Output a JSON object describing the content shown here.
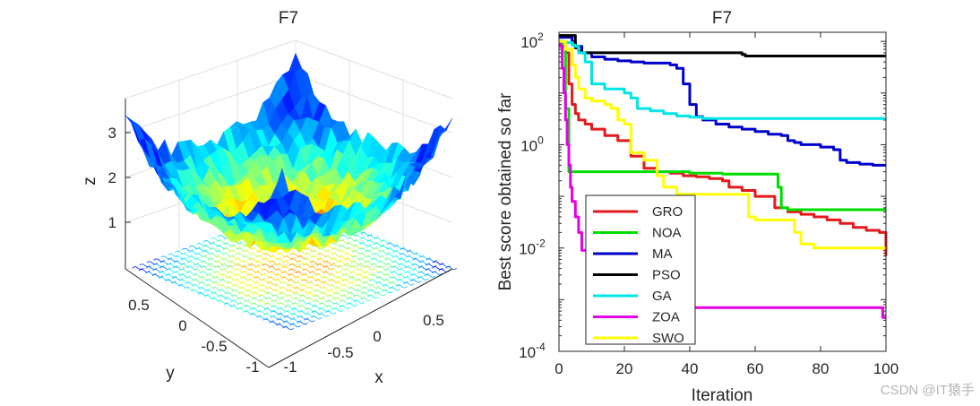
{
  "chart_data": [
    {
      "type": "surface3d",
      "title": "F7",
      "xlabel": "x",
      "ylabel": "y",
      "zlabel": "z",
      "xticks": [
        "-1",
        "-0.5",
        "0",
        "0.5"
      ],
      "yticks": [
        "0.5",
        "0",
        "-0.5",
        "-1"
      ],
      "zticks": [
        "1",
        "2",
        "3"
      ],
      "xlim": [
        -1,
        1
      ],
      "ylim": [
        -1,
        1
      ],
      "zlim": [
        0,
        3.7
      ],
      "colormap": "jet",
      "contour_floor": true
    },
    {
      "type": "line",
      "yscale": "log",
      "title": "F7",
      "xlabel": "Iteration",
      "ylabel": "Best score obtained so far",
      "xlim": [
        0,
        100
      ],
      "ylim": [
        0.0001,
        150
      ],
      "xticks": [
        "0",
        "20",
        "40",
        "60",
        "80",
        "100"
      ],
      "yticks": [
        {
          "base": "10",
          "exp": "2",
          "value": 100
        },
        {
          "base": "10",
          "exp": "0",
          "value": 1
        },
        {
          "base": "10",
          "exp": "-2",
          "value": 0.01
        },
        {
          "base": "10",
          "exp": "-4",
          "value": 0.0001
        }
      ],
      "legend_position": "bottom-left",
      "series": [
        {
          "name": "GRO",
          "color": "#e31a1c",
          "x": [
            0,
            1,
            2,
            3,
            4,
            5,
            6,
            8,
            10,
            14,
            18,
            22,
            26,
            30,
            34,
            38,
            42,
            46,
            50,
            52,
            56,
            60,
            66,
            70,
            74,
            78,
            82,
            86,
            90,
            94,
            98,
            100
          ],
          "y": [
            100,
            80,
            60,
            15,
            6,
            4,
            3,
            2.5,
            2,
            1.5,
            1.2,
            0.6,
            0.35,
            0.3,
            0.28,
            0.25,
            0.24,
            0.22,
            0.2,
            0.15,
            0.13,
            0.1,
            0.06,
            0.05,
            0.045,
            0.04,
            0.035,
            0.03,
            0.025,
            0.022,
            0.02,
            0.007
          ]
        },
        {
          "name": "NOA",
          "color": "#00dd00",
          "x": [
            0,
            1,
            2,
            3,
            4,
            10,
            20,
            30,
            40,
            50,
            60,
            66,
            67,
            68,
            70,
            80,
            90,
            100
          ],
          "y": [
            100,
            80,
            5,
            0.3,
            0.3,
            0.3,
            0.3,
            0.3,
            0.28,
            0.27,
            0.27,
            0.27,
            0.15,
            0.06,
            0.055,
            0.055,
            0.055,
            0.055
          ]
        },
        {
          "name": "MA",
          "color": "#0000cc",
          "x": [
            0,
            2,
            4,
            5,
            7,
            10,
            14,
            18,
            22,
            26,
            30,
            34,
            36,
            38,
            40,
            42,
            44,
            48,
            52,
            56,
            60,
            64,
            68,
            70,
            72,
            74,
            76,
            80,
            84,
            86,
            88,
            92,
            96,
            100
          ],
          "y": [
            120,
            120,
            100,
            80,
            60,
            50,
            45,
            42,
            40,
            38,
            38,
            35,
            30,
            15,
            6,
            3.5,
            3,
            2.5,
            2.2,
            2,
            1.8,
            1.6,
            1.5,
            1.2,
            1.1,
            1.0,
            1.0,
            0.9,
            0.8,
            0.5,
            0.45,
            0.42,
            0.4,
            0.4
          ]
        },
        {
          "name": "PSO",
          "color": "#000000",
          "x": [
            0,
            4,
            5,
            6,
            7,
            28,
            56,
            57,
            100
          ],
          "y": [
            130,
            130,
            75,
            65,
            60,
            60,
            56,
            52,
            52
          ]
        },
        {
          "name": "GA",
          "color": "#00e5e5",
          "x": [
            0,
            2,
            4,
            5,
            6,
            8,
            10,
            14,
            18,
            20,
            22,
            24,
            28,
            32,
            36,
            40,
            44,
            48,
            56,
            64,
            76,
            84,
            100
          ],
          "y": [
            100,
            95,
            85,
            80,
            60,
            40,
            15,
            12,
            12,
            10,
            8,
            5,
            4.5,
            4,
            3.6,
            3.4,
            3.2,
            3.2,
            3.2,
            3.2,
            3.2,
            3.2,
            3.2
          ]
        },
        {
          "name": "ZOA",
          "color": "#e600e6",
          "x": [
            0,
            0.5,
            1,
            1.5,
            2,
            2.5,
            3,
            3.5,
            4,
            5,
            6,
            7,
            8,
            10,
            15,
            25,
            40,
            60,
            80,
            98,
            99,
            100
          ],
          "y": [
            100,
            80,
            30,
            10,
            3,
            1,
            0.4,
            0.15,
            0.08,
            0.04,
            0.02,
            0.009,
            0.009,
            0.009,
            0.0009,
            0.0007,
            0.0007,
            0.0007,
            0.0007,
            0.0007,
            0.00045,
            0.00045
          ]
        },
        {
          "name": "SWO",
          "color": "#ffff00",
          "x": [
            0,
            2,
            4,
            5,
            6,
            8,
            10,
            14,
            16,
            18,
            20,
            22,
            26,
            30,
            32,
            36,
            40,
            44,
            48,
            56,
            58,
            60,
            64,
            68,
            70,
            72,
            74,
            78,
            80,
            86,
            92,
            98,
            100
          ],
          "y": [
            100,
            70,
            35,
            20,
            12,
            8,
            7,
            6,
            5,
            3,
            2.5,
            0.7,
            0.5,
            0.25,
            0.15,
            0.11,
            0.11,
            0.11,
            0.11,
            0.11,
            0.04,
            0.035,
            0.035,
            0.035,
            0.035,
            0.02,
            0.012,
            0.01,
            0.01,
            0.01,
            0.01,
            0.01,
            0.01
          ]
        }
      ]
    }
  ],
  "watermark": "CSDN @IT猿手"
}
